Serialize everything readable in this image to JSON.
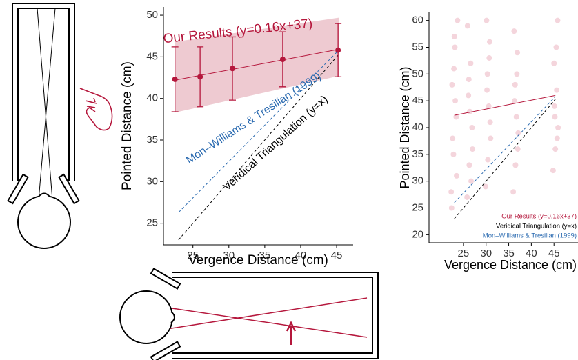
{
  "chart_data": [
    {
      "type": "line",
      "x_label": "Vergence Distance (cm)",
      "y_label": "Pointed Distance (cm)",
      "xlim": [
        20.9,
        47.3
      ],
      "ylim": [
        22.4,
        51
      ],
      "xticks": [
        25,
        30,
        35,
        40,
        45
      ],
      "yticks": [
        25,
        30,
        35,
        40,
        45,
        50
      ],
      "band": {
        "color": "#e8b8c2",
        "x": [
          22.5,
          45.3
        ],
        "lower": [
          38.3,
          42.7
        ],
        "upper": [
          46.8,
          49.7
        ]
      },
      "series": [
        {
          "color": "#b5173c",
          "style": "solid",
          "x": [
            22.5,
            45.3
          ],
          "values": [
            42.2,
            45.9
          ]
        },
        {
          "color": "#2a6ab0",
          "style": "dashed",
          "x": [
            23,
            45.3
          ],
          "values": [
            26.3,
            45.8
          ]
        },
        {
          "color": "#000000",
          "style": "dashed",
          "x": [
            23,
            45.3
          ],
          "values": [
            23,
            45.3
          ]
        }
      ],
      "points": {
        "color": "#b5173c",
        "x": [
          22.5,
          26,
          30.5,
          37.5,
          45.2
        ],
        "values": [
          42.3,
          42.6,
          43.6,
          44.7,
          45.8
        ],
        "error": [
          3.9,
          3.6,
          3.8,
          3.3,
          3.2
        ]
      },
      "annotations": [
        {
          "text": "Our Results (y=0.16x+37)",
          "color": "#b5173c"
        },
        {
          "text": "Mon–Williams & Tresilian (1999)",
          "color": "#2a6ab0"
        },
        {
          "text": "Veridical Triangulation (y=x)",
          "color": "#000000"
        }
      ]
    },
    {
      "type": "scatter",
      "x_label": "Vergence Distance (cm)",
      "y_label": "Pointed Distance (cm)",
      "xlim": [
        17.4,
        50.3
      ],
      "ylim": [
        18.5,
        61.5
      ],
      "xticks": [
        25,
        30,
        35,
        40,
        45
      ],
      "yticks": [
        20,
        25,
        30,
        35,
        40,
        45,
        50,
        55,
        60
      ],
      "legend": "bottom-right",
      "points": {
        "color": "#c0143c",
        "x": [
          22.3,
          22.8,
          23.4,
          22.5,
          23.1,
          23.7,
          22.6,
          23.2,
          22.9,
          23.5,
          22.4,
          23.0,
          25.8,
          26.3,
          26.9,
          26.1,
          26.6,
          25.9,
          26.4,
          27.0,
          26.2,
          26.7,
          29.9,
          30.4,
          30.9,
          30.2,
          30.7,
          30.1,
          30.6,
          31.0,
          30.3,
          30.8,
          36.0,
          36.5,
          37.1,
          36.3,
          36.8,
          36.2,
          36.7,
          37.0,
          36.4,
          36.9,
          44.8,
          45.3,
          45.9,
          45.1,
          45.6,
          45.0,
          45.5,
          45.8,
          45.2,
          45.7
        ],
        "values": [
          28,
          35,
          42,
          48,
          55,
          60,
          38,
          45,
          51,
          31,
          25,
          57,
          27,
          33,
          40,
          46,
          52,
          59,
          43,
          36,
          49,
          30,
          29,
          34,
          41,
          47,
          53,
          60,
          44,
          38,
          50,
          56,
          28,
          33,
          39,
          45,
          50,
          58,
          42,
          36,
          48,
          54,
          32,
          36,
          40,
          44,
          47,
          52,
          55,
          60,
          42,
          38
        ]
      },
      "series": [
        {
          "name": "Our Results (y=0.16x+37)",
          "color": "#b5173c",
          "style": "solid",
          "x": [
            23,
            45.3
          ],
          "values": [
            42.3,
            46
          ]
        },
        {
          "name": "Veridical Triangulation (y=x)",
          "color": "#000000",
          "style": "dashed",
          "x": [
            23,
            45.3
          ],
          "values": [
            23,
            45.3
          ]
        },
        {
          "name": "Mon–Williams & Tresilian (1999)",
          "color": "#2a6ab0",
          "style": "dashed",
          "x": [
            23,
            45.3
          ],
          "values": [
            26,
            45.8
          ]
        }
      ]
    }
  ]
}
